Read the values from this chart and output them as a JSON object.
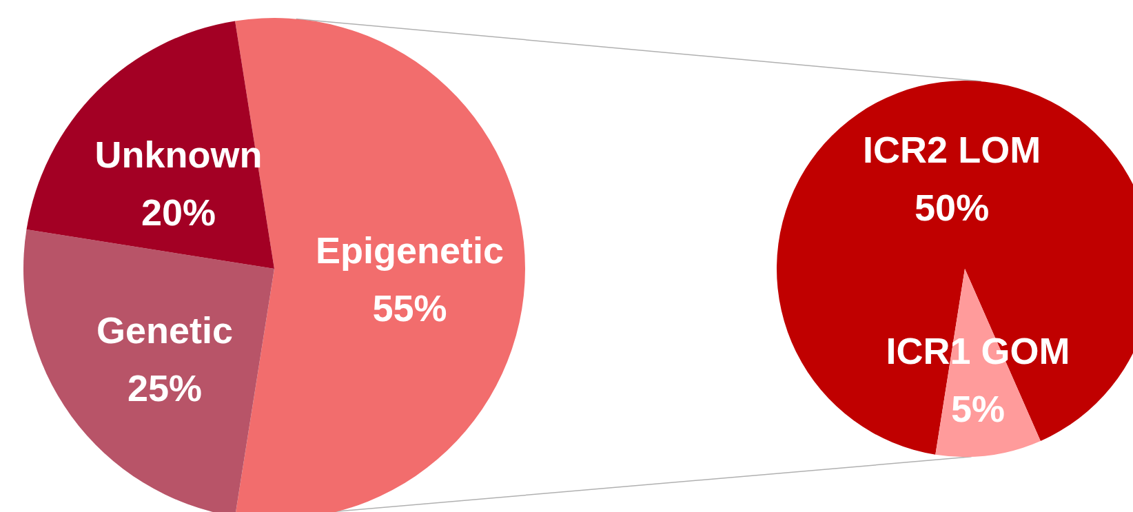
{
  "chart_data": [
    {
      "type": "pie",
      "categories": [
        "Epigenetic",
        "Genetic",
        "Unknown"
      ],
      "values": [
        55,
        25,
        20
      ],
      "colors": [
        "#f26d6d",
        "#b85468",
        "#a30024"
      ],
      "value_labels": [
        "55%",
        "25%",
        "20%"
      ]
    },
    {
      "type": "pie",
      "categories": [
        "ICR2 LOM",
        "ICR1 GOM"
      ],
      "values": [
        50,
        5
      ],
      "colors": [
        "#c00000",
        "#ff9b9b"
      ],
      "value_labels": [
        "50%",
        "5%"
      ]
    }
  ]
}
